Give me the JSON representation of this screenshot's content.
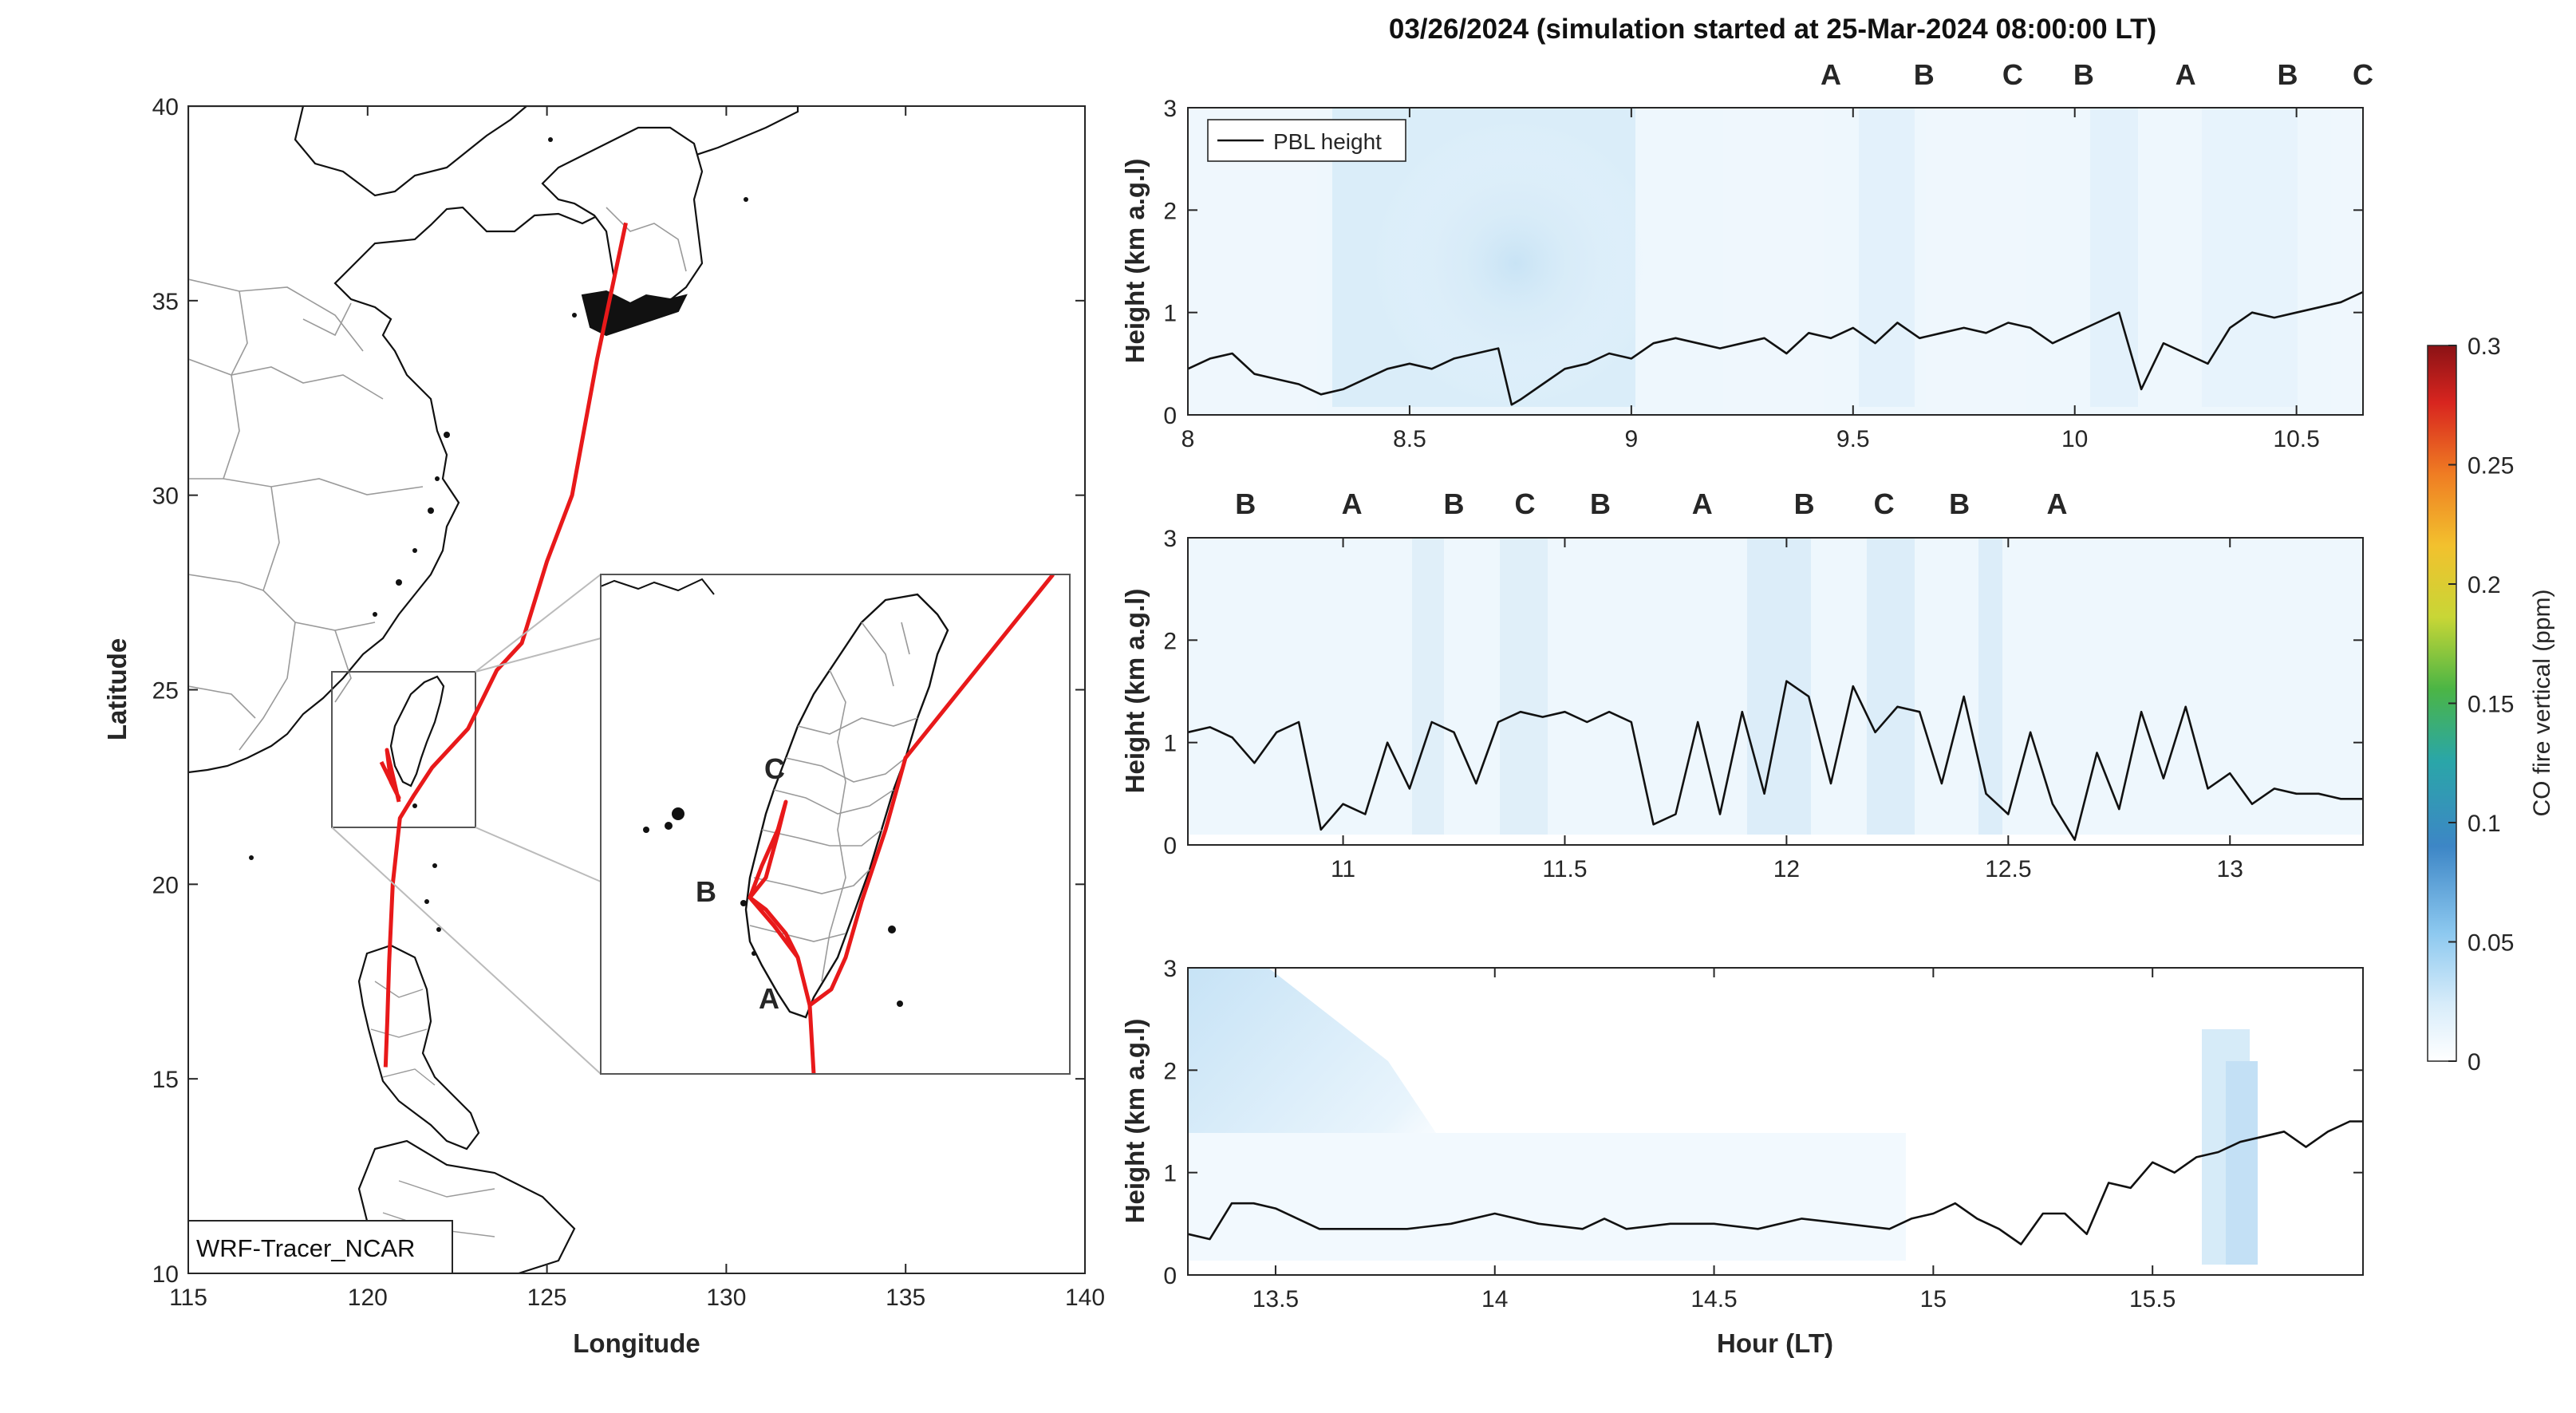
{
  "colors": {
    "A": "#111111",
    "B": "#a21628",
    "C": "#e8a21a",
    "track": "#e8191a"
  },
  "chart_data": [
    {
      "type": "map",
      "xlabel": "Longitude",
      "ylabel": "Latitude",
      "xlim": [
        115,
        140
      ],
      "ylim": [
        10,
        40
      ],
      "xticks": [
        "115",
        "120",
        "125",
        "130",
        "135",
        "140"
      ],
      "yticks": [
        "10",
        "15",
        "20",
        "25",
        "30",
        "35",
        "40"
      ],
      "label_box": "WRF-Tracer_NCAR",
      "inset_region": {
        "lon": [
          119,
          123
        ],
        "lat": [
          21.5,
          26
        ]
      },
      "flight_track": {
        "lon": [
          127.2,
          126.4,
          125.7,
          125.0,
          124.3,
          123.6,
          122.8,
          121.8,
          121.3,
          120.9,
          120.7,
          120.6,
          120.55,
          120.5
        ],
        "lat": [
          37.0,
          33.5,
          30.0,
          28.3,
          26.2,
          25.5,
          24.0,
          23.0,
          22.3,
          21.7,
          20.0,
          18.0,
          16.5,
          15.3
        ]
      },
      "waypoints": [
        {
          "label": "A",
          "lon": 120.7,
          "lat": 22.1
        },
        {
          "label": "B",
          "lon": 120.1,
          "lat": 23.0
        },
        {
          "label": "C",
          "lon": 120.6,
          "lat": 23.8
        }
      ]
    },
    {
      "type": "heatmap",
      "title": "03/26/2024 (simulation started at 25-Mar-2024 08:00:00 LT)",
      "ylabel": "Height (km a.g.l)",
      "xlim": [
        8,
        10.65
      ],
      "ylim": [
        0,
        3
      ],
      "xticks": [
        "8",
        "8.5",
        "9",
        "9.5",
        "10",
        "10.5"
      ],
      "yticks": [
        "0",
        "1",
        "2",
        "3"
      ],
      "legend": "PBL height",
      "legend_position": "top-left",
      "markers": [
        {
          "label": "A",
          "x": 9.45
        },
        {
          "label": "B",
          "x": 9.66
        },
        {
          "label": "C",
          "x": 9.86
        },
        {
          "label": "B",
          "x": 10.02
        },
        {
          "label": "A",
          "x": 10.25
        },
        {
          "label": "B",
          "x": 10.48
        },
        {
          "label": "C",
          "x": 10.65
        }
      ],
      "pbl_height": {
        "x": [
          8.0,
          8.05,
          8.1,
          8.15,
          8.2,
          8.25,
          8.3,
          8.35,
          8.4,
          8.45,
          8.5,
          8.55,
          8.6,
          8.65,
          8.7,
          8.73,
          8.75,
          8.8,
          8.85,
          8.9,
          8.95,
          9.0,
          9.05,
          9.1,
          9.15,
          9.2,
          9.25,
          9.3,
          9.35,
          9.4,
          9.45,
          9.5,
          9.55,
          9.6,
          9.65,
          9.7,
          9.75,
          9.8,
          9.85,
          9.9,
          9.95,
          10.0,
          10.05,
          10.1,
          10.15,
          10.2,
          10.25,
          10.3,
          10.35,
          10.4,
          10.45,
          10.5,
          10.55,
          10.6,
          10.65
        ],
        "y": [
          0.45,
          0.55,
          0.6,
          0.4,
          0.35,
          0.3,
          0.2,
          0.25,
          0.35,
          0.45,
          0.5,
          0.45,
          0.55,
          0.6,
          0.65,
          0.1,
          0.15,
          0.3,
          0.45,
          0.5,
          0.6,
          0.55,
          0.7,
          0.75,
          0.7,
          0.65,
          0.7,
          0.75,
          0.6,
          0.8,
          0.75,
          0.85,
          0.7,
          0.9,
          0.75,
          0.8,
          0.85,
          0.8,
          0.9,
          0.85,
          0.7,
          0.8,
          0.9,
          1.0,
          0.25,
          0.7,
          0.6,
          0.5,
          0.85,
          1.0,
          0.95,
          1.0,
          1.05,
          1.1,
          1.2
        ]
      }
    },
    {
      "type": "heatmap",
      "ylabel": "Height (km a.g.l)",
      "xlim": [
        10.65,
        13.3
      ],
      "ylim": [
        0,
        3
      ],
      "xticks": [
        "11",
        "11.5",
        "12",
        "12.5",
        "13"
      ],
      "yticks": [
        "0",
        "1",
        "2",
        "3"
      ],
      "markers": [
        {
          "label": "B",
          "x": 10.78
        },
        {
          "label": "A",
          "x": 11.02
        },
        {
          "label": "B",
          "x": 11.25
        },
        {
          "label": "C",
          "x": 11.41
        },
        {
          "label": "B",
          "x": 11.58
        },
        {
          "label": "A",
          "x": 11.81
        },
        {
          "label": "B",
          "x": 12.04
        },
        {
          "label": "C",
          "x": 12.22
        },
        {
          "label": "B",
          "x": 12.39
        },
        {
          "label": "A",
          "x": 12.61
        }
      ],
      "pbl_height": {
        "x": [
          10.65,
          10.7,
          10.75,
          10.8,
          10.85,
          10.9,
          10.95,
          11.0,
          11.05,
          11.1,
          11.15,
          11.2,
          11.25,
          11.3,
          11.35,
          11.4,
          11.45,
          11.5,
          11.55,
          11.6,
          11.65,
          11.7,
          11.75,
          11.8,
          11.85,
          11.9,
          11.95,
          12.0,
          12.05,
          12.1,
          12.15,
          12.2,
          12.25,
          12.3,
          12.35,
          12.4,
          12.45,
          12.5,
          12.55,
          12.6,
          12.65,
          12.7,
          12.75,
          12.8,
          12.85,
          12.9,
          12.95,
          13.0,
          13.05,
          13.1,
          13.15,
          13.2,
          13.25,
          13.3
        ],
        "y": [
          1.1,
          1.15,
          1.05,
          0.8,
          1.1,
          1.2,
          0.15,
          0.4,
          0.3,
          1.0,
          0.55,
          1.2,
          1.1,
          0.6,
          1.2,
          1.3,
          1.25,
          1.3,
          1.2,
          1.3,
          1.2,
          0.2,
          0.3,
          1.2,
          0.3,
          1.3,
          0.5,
          1.6,
          1.45,
          0.6,
          1.55,
          1.1,
          1.35,
          1.3,
          0.6,
          1.45,
          0.5,
          0.3,
          1.1,
          0.4,
          0.05,
          0.9,
          0.35,
          1.3,
          0.65,
          1.35,
          0.55,
          0.7,
          0.4,
          0.55,
          0.5,
          0.5,
          0.45,
          0.45
        ]
      }
    },
    {
      "type": "heatmap",
      "xlabel": "Hour (LT)",
      "ylabel": "Height (km a.g.l)",
      "xlim": [
        13.3,
        15.98
      ],
      "ylim": [
        0,
        3
      ],
      "xticks": [
        "13.5",
        "14",
        "14.5",
        "15",
        "15.5"
      ],
      "yticks": [
        "0",
        "1",
        "2",
        "3"
      ],
      "pbl_height": {
        "x": [
          13.3,
          13.35,
          13.4,
          13.45,
          13.5,
          13.55,
          13.6,
          13.7,
          13.8,
          13.9,
          14.0,
          14.1,
          14.2,
          14.25,
          14.3,
          14.4,
          14.5,
          14.6,
          14.7,
          14.8,
          14.9,
          14.95,
          15.0,
          15.05,
          15.1,
          15.15,
          15.2,
          15.25,
          15.3,
          15.35,
          15.4,
          15.45,
          15.5,
          15.55,
          15.6,
          15.65,
          15.7,
          15.75,
          15.8,
          15.85,
          15.9,
          15.95,
          15.98
        ],
        "y": [
          0.4,
          0.35,
          0.7,
          0.7,
          0.65,
          0.55,
          0.45,
          0.45,
          0.45,
          0.5,
          0.6,
          0.5,
          0.45,
          0.55,
          0.45,
          0.5,
          0.5,
          0.45,
          0.55,
          0.5,
          0.45,
          0.55,
          0.6,
          0.7,
          0.55,
          0.45,
          0.3,
          0.6,
          0.6,
          0.4,
          0.9,
          0.85,
          1.1,
          1.0,
          1.15,
          1.2,
          1.3,
          1.35,
          1.4,
          1.25,
          1.4,
          1.5,
          1.5
        ]
      }
    }
  ],
  "colorbar": {
    "label": "CO fire vertical (ppm)",
    "range": [
      0,
      0.3
    ],
    "ticks": [
      "0",
      "0.05",
      "0.1",
      "0.15",
      "0.2",
      "0.25",
      "0.3"
    ]
  }
}
